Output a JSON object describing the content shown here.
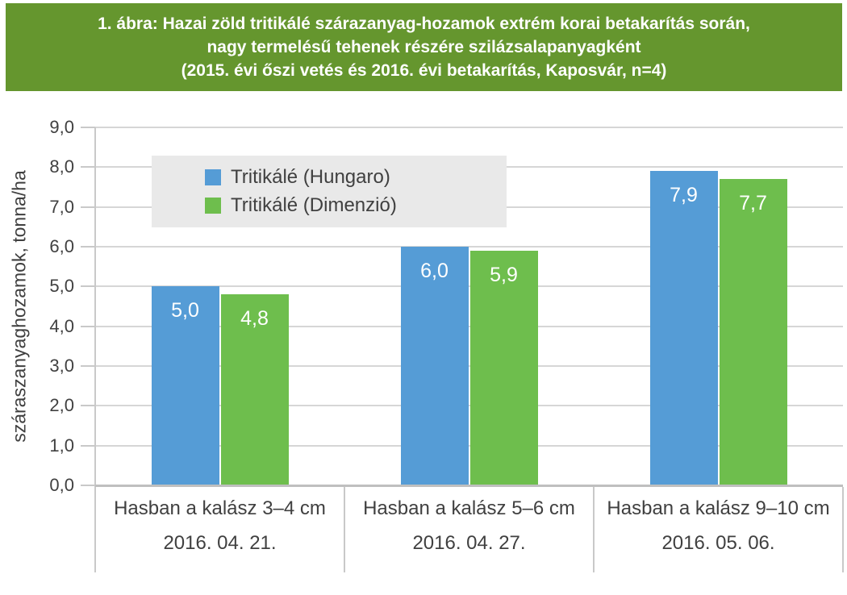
{
  "banner": {
    "lines": [
      "1. ábra: Hazai zöld tritikálé szárazanyag-hozamok extrém korai betakarítás során,",
      "nagy termelésű tehenek részére szilázsalapanyagként",
      "(2015. évi őszi vetés és 2016. évi betakarítás, Kaposvár, n=4)"
    ],
    "background_color": "#65962E",
    "text_color": "#FFFFFF"
  },
  "chart_data": {
    "type": "bar",
    "title": "1. ábra: Hazai zöld tritikálé szárazanyag-hozamok extrém korai betakarítás során, nagy termelésű tehenek részére szilázsalapanyagként (2015. évi őszi vetés és 2016. évi betakarítás, Kaposvár, n=4)",
    "ylabel": "száraszanyaghozamok, tonna/ha",
    "xlabel": "",
    "ylim": [
      0,
      9
    ],
    "ytick_step": 1,
    "ytick_labels": [
      "0,0",
      "1,0",
      "2,0",
      "3,0",
      "4,0",
      "5,0",
      "6,0",
      "7,0",
      "8,0",
      "9,0"
    ],
    "grid": true,
    "legend_position": "top-left-inside",
    "categories": [
      {
        "label": "Hasban a kalász 3–4 cm",
        "date": "2016. 04. 21."
      },
      {
        "label": "Hasban a kalász 5–6 cm",
        "date": "2016. 04. 27."
      },
      {
        "label": "Hasban a kalász 9–10 cm",
        "date": "2016. 05. 06."
      }
    ],
    "series": [
      {
        "name": "Tritikálé (Hungaro)",
        "color": "#559CD6",
        "values": [
          5.0,
          6.0,
          7.9
        ],
        "value_labels": [
          "5,0",
          "6,0",
          "7,9"
        ]
      },
      {
        "name": "Tritikálé (Dimenzió)",
        "color": "#6EBE4D",
        "values": [
          4.8,
          5.9,
          7.7
        ],
        "value_labels": [
          "4,8",
          "5,9",
          "7,7"
        ]
      }
    ],
    "colors": {
      "gridline": "#D6D6D6",
      "axis_line": "#BFBFBF",
      "divider": "#C9C9C9",
      "text": "#404040",
      "legend_background": "#E9E9E9",
      "value_label_text": "#FFFFFF"
    }
  }
}
